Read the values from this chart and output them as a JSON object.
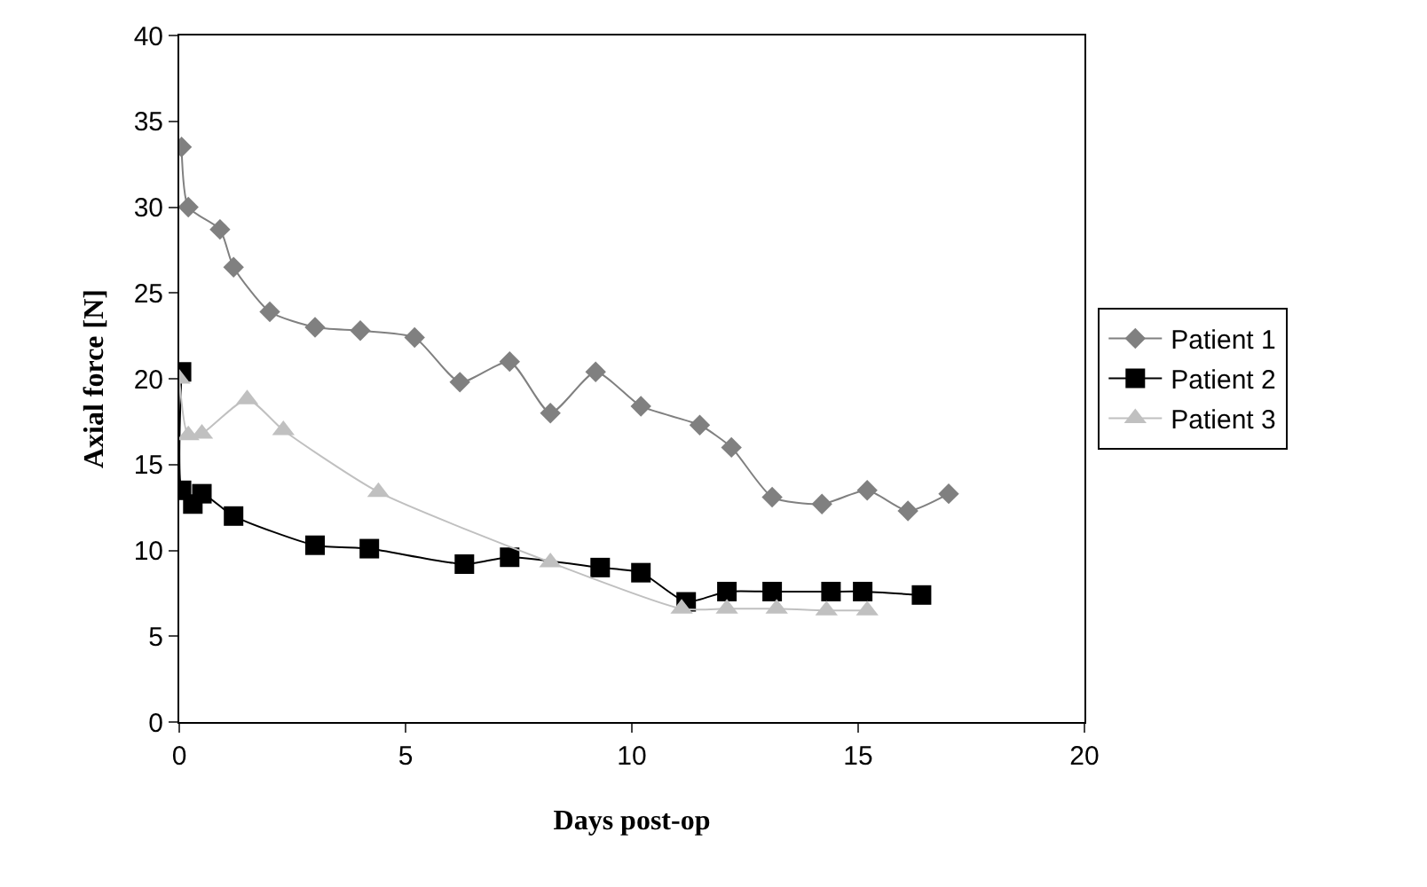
{
  "chart_data": {
    "type": "line",
    "xlabel": "Days post-op",
    "ylabel": "Axial force [N]",
    "xlim": [
      0,
      20
    ],
    "xticks": [
      0,
      5,
      10,
      15,
      20
    ],
    "ylim": [
      0,
      40
    ],
    "yticks": [
      0,
      5,
      10,
      15,
      20,
      25,
      30,
      35,
      40
    ],
    "grid": false,
    "legend": "right",
    "series": [
      {
        "name": "Patient 1",
        "color": "#808080",
        "marker": "diamond",
        "x": [
          0.05,
          0.2,
          0.9,
          1.2,
          2,
          3,
          4,
          5.2,
          6.2,
          7.3,
          8.2,
          9.2,
          10.2,
          11.5,
          12.2,
          13.1,
          14.2,
          15.2,
          16.1,
          17
        ],
        "values": [
          33.5,
          30,
          28.7,
          26.5,
          23.9,
          23,
          22.8,
          22.4,
          19.8,
          21,
          18,
          20.4,
          18.4,
          17.3,
          16,
          13.1,
          12.7,
          13.5,
          12.3,
          13.3
        ]
      },
      {
        "name": "Patient 2",
        "color": "#000000",
        "marker": "square",
        "x": [
          0.05,
          0.05,
          0.3,
          0.5,
          1.2,
          3,
          4.2,
          6.3,
          7.3,
          9.3,
          10.2,
          11.2,
          12.1,
          13.1,
          14.4,
          15.1,
          16.4
        ],
        "values": [
          20.4,
          13.5,
          12.7,
          13.3,
          12,
          10.3,
          10.1,
          9.2,
          9.6,
          9,
          8.7,
          7,
          7.6,
          7.6,
          7.6,
          7.6,
          7.4
        ]
      },
      {
        "name": "Patient 3",
        "color": "#c0c0c0",
        "marker": "triangle",
        "x": [
          0,
          0.2,
          0.5,
          1.5,
          2.3,
          4.4,
          8.2,
          11.1,
          12.1,
          13.2,
          14.3,
          15.2
        ],
        "values": [
          20,
          16.7,
          16.8,
          18.8,
          17,
          13.4,
          9.3,
          6.6,
          6.6,
          6.6,
          6.5,
          6.5
        ]
      }
    ]
  }
}
